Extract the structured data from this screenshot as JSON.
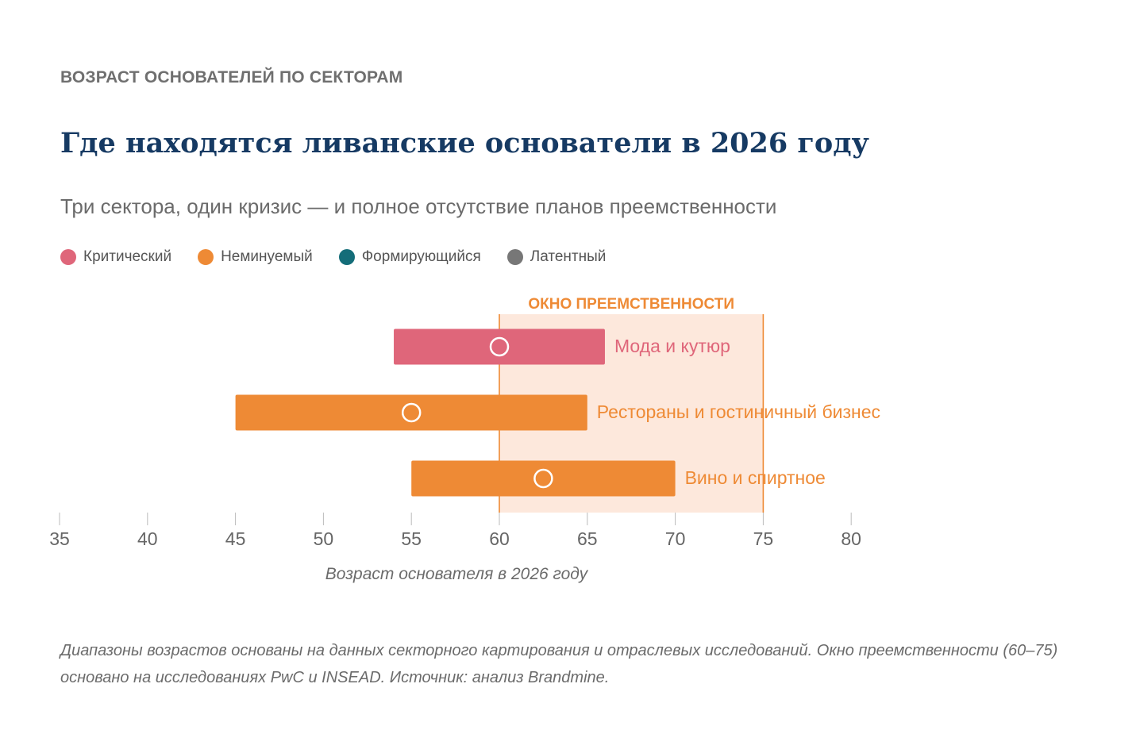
{
  "header": {
    "kicker": "ВОЗРАСТ ОСНОВАТЕЛЕЙ ПО СЕКТОРАМ",
    "title": "Где находятся ливанские основатели в 2026 году",
    "subtitle": "Три сектора, один кризис — и полное отсутствие планов преемственности"
  },
  "legend": [
    {
      "label": "Критический",
      "color": "#df667a"
    },
    {
      "label": "Неминуемый",
      "color": "#ee8a35"
    },
    {
      "label": "Формирующийся",
      "color": "#146d79"
    },
    {
      "label": "Латентный",
      "color": "#777777"
    }
  ],
  "chart_data": {
    "type": "range-bar",
    "xlabel": "Возраст основателя в 2026 году",
    "xlim": [
      35,
      80
    ],
    "xticks": [
      35,
      40,
      45,
      50,
      55,
      60,
      65,
      70,
      75,
      80
    ],
    "grid": false,
    "highlight_window": {
      "label": "ОКНО ПРЕЕМСТВЕННОСТИ",
      "from": 60,
      "to": 75,
      "color": "#ee8a35"
    },
    "series": [
      {
        "label": "Мода и кутюр",
        "min": 54,
        "max": 66,
        "median": 60,
        "category": "Критический",
        "color": "#df667a"
      },
      {
        "label": "Рестораны и гостиничный бизнес",
        "min": 45,
        "max": 65,
        "median": 55,
        "category": "Неминуемый",
        "color": "#ee8a35"
      },
      {
        "label": "Вино и спиртное",
        "min": 55,
        "max": 70,
        "median": 62.5,
        "category": "Неминуемый",
        "color": "#ee8a35"
      }
    ]
  },
  "footnote": "Диапазоны возрастов основаны на данных секторного картирования и отраслевых исследований. Окно преемственности (60–75) основано на исследованиях PwC и INSEAD. Источник: анализ Brandmine."
}
